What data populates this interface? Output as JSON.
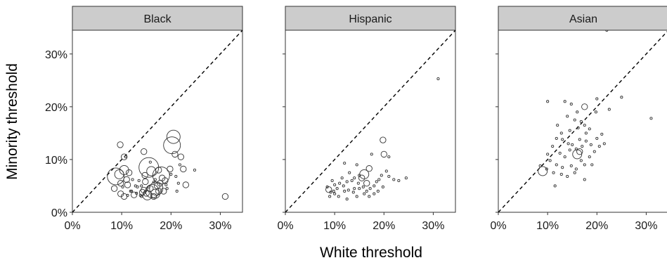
{
  "figure": {
    "xlabel": "White threshold",
    "ylabel": "Minority threshold"
  },
  "chart_data": [
    {
      "type": "scatter",
      "panel": "Black",
      "xlim": [
        0,
        0.345
      ],
      "ylim": [
        0,
        0.345
      ],
      "xticks": [
        0,
        0.1,
        0.2,
        0.3
      ],
      "yticks": [
        0,
        0.1,
        0.2,
        0.3
      ],
      "tick_labels": [
        "0%",
        "10%",
        "20%",
        "30%"
      ],
      "reference_line": "y = x (dashed)",
      "points": [
        [
          0.097,
          0.128,
          2
        ],
        [
          0.105,
          0.105,
          2
        ],
        [
          0.108,
          0.105,
          1
        ],
        [
          0.105,
          0.08,
          3
        ],
        [
          0.095,
          0.072,
          3
        ],
        [
          0.088,
          0.068,
          5
        ],
        [
          0.085,
          0.045,
          2
        ],
        [
          0.098,
          0.055,
          2
        ],
        [
          0.102,
          0.048,
          1
        ],
        [
          0.11,
          0.062,
          2
        ],
        [
          0.115,
          0.075,
          2
        ],
        [
          0.112,
          0.052,
          2
        ],
        [
          0.118,
          0.04,
          1
        ],
        [
          0.098,
          0.035,
          2
        ],
        [
          0.105,
          0.03,
          2
        ],
        [
          0.125,
          0.033,
          2
        ],
        [
          0.12,
          0.04,
          1
        ],
        [
          0.132,
          0.048,
          1
        ],
        [
          0.13,
          0.036,
          1
        ],
        [
          0.138,
          0.032,
          1
        ],
        [
          0.14,
          0.05,
          1
        ],
        [
          0.142,
          0.038,
          2
        ],
        [
          0.145,
          0.042,
          2
        ],
        [
          0.148,
          0.058,
          2
        ],
        [
          0.15,
          0.036,
          2
        ],
        [
          0.152,
          0.032,
          3
        ],
        [
          0.155,
          0.085,
          6
        ],
        [
          0.16,
          0.078,
          3
        ],
        [
          0.145,
          0.115,
          2
        ],
        [
          0.158,
          0.045,
          2
        ],
        [
          0.162,
          0.04,
          4
        ],
        [
          0.165,
          0.03,
          2
        ],
        [
          0.168,
          0.035,
          3
        ],
        [
          0.17,
          0.045,
          4
        ],
        [
          0.172,
          0.05,
          2
        ],
        [
          0.175,
          0.04,
          2
        ],
        [
          0.178,
          0.055,
          2
        ],
        [
          0.18,
          0.07,
          5
        ],
        [
          0.182,
          0.065,
          2
        ],
        [
          0.185,
          0.04,
          2
        ],
        [
          0.188,
          0.06,
          2
        ],
        [
          0.19,
          0.052,
          1
        ],
        [
          0.192,
          0.045,
          1
        ],
        [
          0.175,
          0.08,
          2
        ],
        [
          0.168,
          0.062,
          1
        ],
        [
          0.198,
          0.082,
          2
        ],
        [
          0.2,
          0.072,
          1
        ],
        [
          0.202,
          0.127,
          5
        ],
        [
          0.205,
          0.143,
          4
        ],
        [
          0.208,
          0.11,
          2
        ],
        [
          0.21,
          0.068,
          1
        ],
        [
          0.212,
          0.04,
          1
        ],
        [
          0.215,
          0.055,
          1
        ],
        [
          0.218,
          0.09,
          1
        ],
        [
          0.22,
          0.105,
          2
        ],
        [
          0.225,
          0.082,
          2
        ],
        [
          0.23,
          0.052,
          2
        ],
        [
          0.248,
          0.08,
          1
        ],
        [
          0.31,
          0.03,
          2
        ],
        [
          0.135,
          0.06,
          1
        ],
        [
          0.128,
          0.05,
          1
        ],
        [
          0.147,
          0.07,
          2
        ],
        [
          0.158,
          0.095,
          1
        ],
        [
          0.165,
          0.057,
          1
        ],
        [
          0.122,
          0.062,
          1
        ],
        [
          0.112,
          0.032,
          1
        ],
        [
          0.14,
          0.03,
          1
        ],
        [
          0.155,
          0.048,
          1
        ]
      ]
    },
    {
      "type": "scatter",
      "panel": "Hispanic",
      "xlim": [
        0,
        0.345
      ],
      "ylim": [
        0,
        0.345
      ],
      "xticks": [
        0,
        0.1,
        0.2,
        0.3
      ],
      "yticks": [
        0,
        0.1,
        0.2,
        0.3
      ],
      "tick_labels": [
        "0%",
        "10%",
        "20%",
        "30%"
      ],
      "reference_line": "y = x (dashed)",
      "points": [
        [
          0.31,
          0.253,
          1
        ],
        [
          0.198,
          0.137,
          2
        ],
        [
          0.2,
          0.11,
          2
        ],
        [
          0.21,
          0.105,
          1
        ],
        [
          0.175,
          0.11,
          1
        ],
        [
          0.145,
          0.09,
          1
        ],
        [
          0.12,
          0.093,
          1
        ],
        [
          0.17,
          0.083,
          2
        ],
        [
          0.16,
          0.072,
          3
        ],
        [
          0.155,
          0.065,
          2
        ],
        [
          0.165,
          0.055,
          2
        ],
        [
          0.15,
          0.07,
          1
        ],
        [
          0.14,
          0.065,
          1
        ],
        [
          0.13,
          0.075,
          1
        ],
        [
          0.135,
          0.06,
          1
        ],
        [
          0.125,
          0.058,
          1
        ],
        [
          0.118,
          0.05,
          1
        ],
        [
          0.11,
          0.055,
          1
        ],
        [
          0.105,
          0.045,
          1
        ],
        [
          0.098,
          0.04,
          1
        ],
        [
          0.092,
          0.038,
          1
        ],
        [
          0.088,
          0.043,
          2
        ],
        [
          0.085,
          0.048,
          1
        ],
        [
          0.1,
          0.035,
          1
        ],
        [
          0.108,
          0.03,
          1
        ],
        [
          0.12,
          0.04,
          1
        ],
        [
          0.128,
          0.042,
          1
        ],
        [
          0.138,
          0.038,
          1
        ],
        [
          0.145,
          0.03,
          1
        ],
        [
          0.15,
          0.045,
          1
        ],
        [
          0.158,
          0.048,
          1
        ],
        [
          0.165,
          0.04,
          1
        ],
        [
          0.172,
          0.045,
          1
        ],
        [
          0.18,
          0.05,
          1
        ],
        [
          0.185,
          0.058,
          1
        ],
        [
          0.19,
          0.062,
          1
        ],
        [
          0.195,
          0.07,
          1
        ],
        [
          0.205,
          0.078,
          1
        ],
        [
          0.21,
          0.068,
          1
        ],
        [
          0.22,
          0.062,
          1
        ],
        [
          0.23,
          0.06,
          1
        ],
        [
          0.245,
          0.065,
          1
        ],
        [
          0.18,
          0.035,
          1
        ],
        [
          0.17,
          0.03,
          1
        ],
        [
          0.16,
          0.035,
          1
        ],
        [
          0.115,
          0.065,
          1
        ],
        [
          0.095,
          0.06,
          1
        ],
        [
          0.1,
          0.052,
          1
        ],
        [
          0.14,
          0.045,
          1
        ],
        [
          0.148,
          0.055,
          1
        ],
        [
          0.188,
          0.04,
          1
        ],
        [
          0.198,
          0.048,
          1
        ],
        [
          0.09,
          0.03,
          1
        ],
        [
          0.125,
          0.025,
          1
        ]
      ]
    },
    {
      "type": "scatter",
      "panel": "Asian",
      "xlim": [
        0,
        0.345
      ],
      "ylim": [
        0,
        0.345
      ],
      "xticks": [
        0,
        0.1,
        0.2,
        0.3
      ],
      "yticks": [
        0,
        0.1,
        0.2,
        0.3
      ],
      "tick_labels": [
        "0%",
        "10%",
        "20%",
        "30%"
      ],
      "reference_line": "y = x (dashed)",
      "points": [
        [
          0.22,
          0.345,
          1
        ],
        [
          0.1,
          0.21,
          1
        ],
        [
          0.135,
          0.21,
          1
        ],
        [
          0.148,
          0.205,
          1
        ],
        [
          0.2,
          0.215,
          1
        ],
        [
          0.25,
          0.218,
          1
        ],
        [
          0.31,
          0.178,
          1
        ],
        [
          0.175,
          0.2,
          2
        ],
        [
          0.198,
          0.19,
          1
        ],
        [
          0.225,
          0.195,
          1
        ],
        [
          0.16,
          0.19,
          1
        ],
        [
          0.14,
          0.182,
          1
        ],
        [
          0.155,
          0.175,
          1
        ],
        [
          0.168,
          0.172,
          1
        ],
        [
          0.175,
          0.165,
          1
        ],
        [
          0.185,
          0.158,
          1
        ],
        [
          0.21,
          0.148,
          1
        ],
        [
          0.2,
          0.14,
          1
        ],
        [
          0.12,
          0.165,
          1
        ],
        [
          0.118,
          0.14,
          1
        ],
        [
          0.13,
          0.138,
          1
        ],
        [
          0.142,
          0.13,
          1
        ],
        [
          0.15,
          0.128,
          1
        ],
        [
          0.158,
          0.12,
          1
        ],
        [
          0.165,
          0.115,
          2
        ],
        [
          0.17,
          0.125,
          1
        ],
        [
          0.178,
          0.135,
          1
        ],
        [
          0.188,
          0.128,
          1
        ],
        [
          0.11,
          0.125,
          1
        ],
        [
          0.125,
          0.112,
          1
        ],
        [
          0.135,
          0.105,
          1
        ],
        [
          0.145,
          0.118,
          1
        ],
        [
          0.16,
          0.11,
          3
        ],
        [
          0.168,
          0.098,
          1
        ],
        [
          0.175,
          0.09,
          1
        ],
        [
          0.105,
          0.098,
          1
        ],
        [
          0.118,
          0.09,
          1
        ],
        [
          0.13,
          0.085,
          1
        ],
        [
          0.148,
          0.088,
          1
        ],
        [
          0.158,
          0.082,
          1
        ],
        [
          0.098,
          0.082,
          1
        ],
        [
          0.09,
          0.078,
          3
        ],
        [
          0.085,
          0.088,
          1
        ],
        [
          0.112,
          0.075,
          1
        ],
        [
          0.128,
          0.072,
          1
        ],
        [
          0.14,
          0.068,
          1
        ],
        [
          0.155,
          0.075,
          1
        ],
        [
          0.175,
          0.062,
          1
        ],
        [
          0.115,
          0.05,
          1
        ],
        [
          0.195,
          0.115,
          1
        ],
        [
          0.205,
          0.125,
          1
        ],
        [
          0.215,
          0.13,
          1
        ],
        [
          0.185,
          0.105,
          1
        ],
        [
          0.19,
          0.09,
          1
        ],
        [
          0.1,
          0.11,
          1
        ],
        [
          0.165,
          0.138,
          1
        ],
        [
          0.145,
          0.155,
          1
        ],
        [
          0.128,
          0.15,
          1
        ],
        [
          0.178,
          0.15,
          1
        ],
        [
          0.162,
          0.16,
          1
        ]
      ]
    }
  ]
}
